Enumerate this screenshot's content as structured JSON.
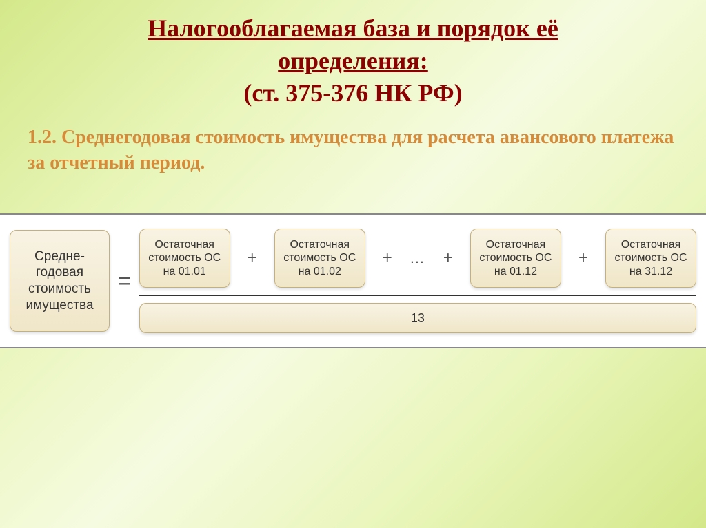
{
  "title": {
    "line1": "Налогооблагаемая база и порядок её",
    "line2": "определения:",
    "line3": "(ст. 375-376 НК РФ)"
  },
  "subheading": "1.2. Среднегодовая стоимость имущества для расчета авансового платежа за отчетный период.",
  "formula": {
    "lhs": "Средне-годовая стоимость имущества",
    "equals": "=",
    "terms": [
      "Остаточная стоимость ОС на 01.01",
      "Остаточная стоимость ОС на 01.02",
      "Остаточная стоимость ОС на 01.12",
      "Остаточная стоимость ОС на 31.12"
    ],
    "plus": "+",
    "dots": "…",
    "denominator": "13"
  },
  "colors": {
    "title_color": "#8b0000",
    "subheading_color": "#d68b3a",
    "box_bg_top": "#f8f3e4",
    "box_bg_bottom": "#f0e6c8",
    "box_border": "#c4b07a",
    "background_start": "#d4e88a",
    "background_mid": "#f5fbe0"
  }
}
